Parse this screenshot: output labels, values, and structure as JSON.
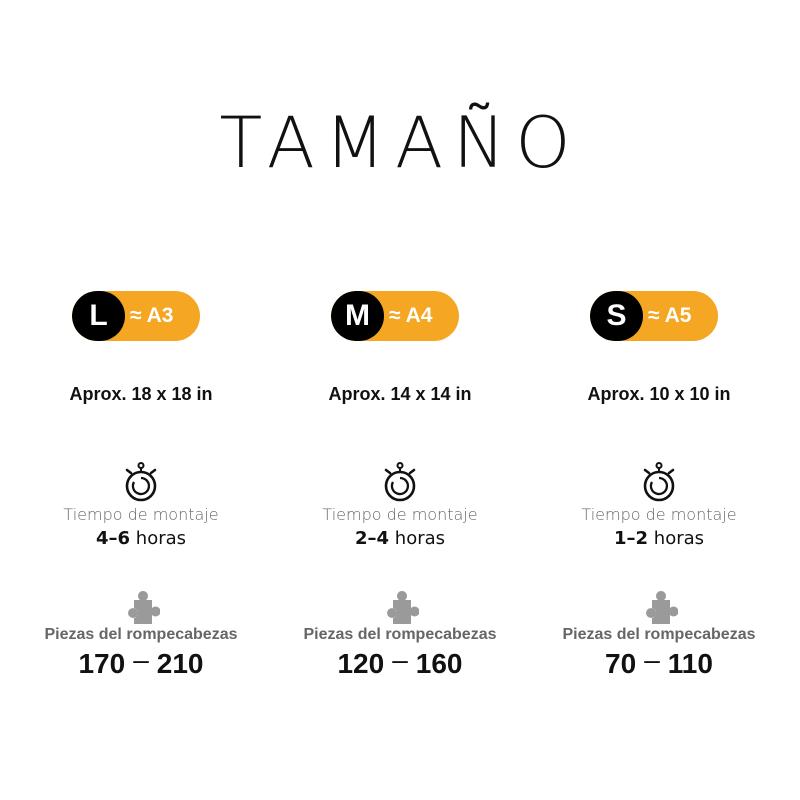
{
  "title": "TAMAÑO",
  "colors": {
    "accent": "#f5a623",
    "badge": "#000000",
    "muted": "#666666"
  },
  "time_label": "Tiempo de montaje",
  "pieces_label": "Piezas del rompecabezas",
  "icons": {
    "time": "stopwatch-icon",
    "pieces": "puzzle-piece-icon"
  },
  "sizes": [
    {
      "letter": "L",
      "paper": "≈ A3",
      "dimensions": "Aprox. 18 x 18 in",
      "time_range": "4–6",
      "time_unit": "horas",
      "pieces_min": "170",
      "pieces_sep": "–",
      "pieces_max": "210"
    },
    {
      "letter": "M",
      "paper": "≈ A4",
      "dimensions": "Aprox. 14 x 14 in",
      "time_range": "2–4",
      "time_unit": "horas",
      "pieces_min": "120",
      "pieces_sep": "–",
      "pieces_max": "160"
    },
    {
      "letter": "S",
      "paper": "≈ A5",
      "dimensions": "Aprox. 10 x 10 in",
      "time_range": "1–2",
      "time_unit": "horas",
      "pieces_min": "70",
      "pieces_sep": "–",
      "pieces_max": "110"
    }
  ]
}
